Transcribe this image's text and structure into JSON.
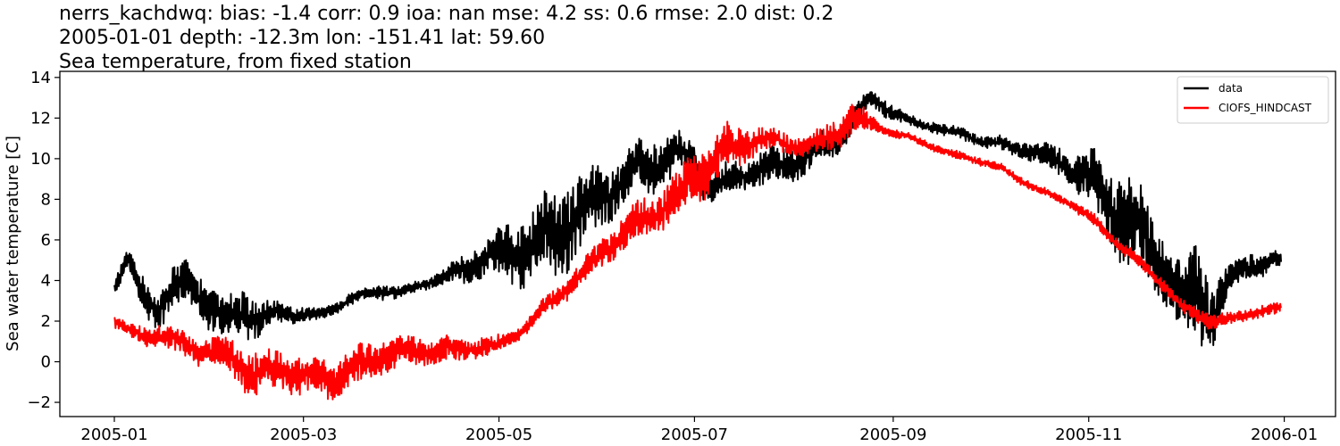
{
  "chart_data": {
    "type": "line",
    "title_lines": [
      "nerrs_kachdwq: bias: -1.4  corr: 0.9  ioa: nan  mse: 4.2  ss: 0.6  rmse: 2.0  dist: 0.2",
      "2005-01-01 depth: -12.3m lon: -151.41 lat: 59.60",
      "Sea temperature, from fixed station"
    ],
    "xlabel": "",
    "ylabel": "Sea water temperature [C]",
    "x_ticks": [
      "2005-01",
      "2005-03",
      "2005-05",
      "2005-07",
      "2005-09",
      "2005-11",
      "2006-01"
    ],
    "xlim": [
      "2004-12-15",
      "2006-01-17"
    ],
    "y_ticks": [
      -2,
      0,
      2,
      4,
      6,
      8,
      10,
      12,
      14
    ],
    "ylim": [
      -2.7,
      14.3
    ],
    "grid": false,
    "legend_placement": "top-right",
    "series": [
      {
        "name": "data",
        "color": "#000000",
        "x": [
          "2005-01-01",
          "2005-01-05",
          "2005-01-10",
          "2005-01-15",
          "2005-01-20",
          "2005-01-25",
          "2005-01-31",
          "2005-02-05",
          "2005-02-10",
          "2005-02-15",
          "2005-02-20",
          "2005-02-28",
          "2005-03-05",
          "2005-03-10",
          "2005-03-15",
          "2005-03-20",
          "2005-03-25",
          "2005-03-31",
          "2005-04-05",
          "2005-04-10",
          "2005-04-15",
          "2005-04-20",
          "2005-04-25",
          "2005-04-30",
          "2005-05-05",
          "2005-05-10",
          "2005-05-15",
          "2005-05-20",
          "2005-05-25",
          "2005-05-31",
          "2005-06-05",
          "2005-06-10",
          "2005-06-15",
          "2005-06-20",
          "2005-06-25",
          "2005-06-30",
          "2005-07-05",
          "2005-07-10",
          "2005-07-15",
          "2005-07-20",
          "2005-07-25",
          "2005-07-31",
          "2005-08-05",
          "2005-08-10",
          "2005-08-15",
          "2005-08-20",
          "2005-08-25",
          "2005-08-31",
          "2005-09-05",
          "2005-09-10",
          "2005-09-15",
          "2005-09-20",
          "2005-09-25",
          "2005-09-30",
          "2005-10-05",
          "2005-10-10",
          "2005-10-15",
          "2005-10-20",
          "2005-10-25",
          "2005-10-31",
          "2005-11-05",
          "2005-11-10",
          "2005-11-15",
          "2005-11-20",
          "2005-11-25",
          "2005-11-30",
          "2005-12-05",
          "2005-12-10",
          "2005-12-15",
          "2005-12-20",
          "2005-12-25",
          "2005-12-31"
        ],
        "y": [
          3.6,
          5.0,
          3.3,
          2.6,
          3.6,
          4.0,
          2.5,
          2.0,
          2.6,
          2.0,
          2.5,
          2.3,
          2.3,
          2.6,
          3.0,
          3.3,
          3.5,
          3.4,
          3.7,
          4.0,
          4.2,
          4.6,
          4.9,
          5.3,
          5.4,
          5.6,
          6.0,
          6.4,
          7.3,
          7.8,
          8.5,
          9.1,
          9.6,
          9.8,
          10.2,
          10.0,
          8.6,
          8.8,
          9.2,
          9.4,
          9.6,
          9.7,
          10.1,
          10.6,
          11.0,
          12.0,
          13.0,
          12.4,
          11.9,
          11.7,
          11.5,
          11.3,
          11.1,
          10.8,
          10.7,
          10.5,
          10.3,
          10.0,
          9.7,
          9.0,
          8.3,
          7.5,
          6.6,
          5.6,
          4.4,
          3.0,
          3.4,
          2.2,
          3.9,
          4.8,
          4.8,
          5.0
        ],
        "fluct": [
          0.5,
          0.5,
          1.0,
          0.9,
          1.1,
          1.1,
          1.1,
          1.1,
          1.2,
          0.9,
          0.5,
          0.4,
          0.3,
          0.3,
          0.3,
          0.3,
          0.4,
          0.3,
          0.3,
          0.3,
          0.4,
          0.8,
          0.9,
          1.2,
          1.6,
          1.7,
          2.0,
          2.2,
          2.0,
          1.8,
          1.3,
          1.3,
          1.4,
          1.4,
          1.0,
          1.0,
          0.7,
          0.8,
          0.8,
          0.8,
          0.9,
          0.9,
          0.8,
          0.8,
          0.9,
          0.6,
          0.5,
          0.4,
          0.3,
          0.3,
          0.3,
          0.3,
          0.3,
          0.3,
          0.4,
          0.4,
          0.5,
          0.6,
          0.8,
          1.2,
          1.8,
          2.4,
          2.4,
          1.8,
          1.8,
          1.8,
          2.6,
          1.5,
          0.8,
          0.7,
          0.6,
          0.4
        ]
      },
      {
        "name": "CIOFS_HINDCAST",
        "color": "#ff0000",
        "x": [
          "2005-01-01",
          "2005-01-05",
          "2005-01-10",
          "2005-01-15",
          "2005-01-20",
          "2005-01-25",
          "2005-01-31",
          "2005-02-05",
          "2005-02-10",
          "2005-02-15",
          "2005-02-20",
          "2005-02-28",
          "2005-03-05",
          "2005-03-10",
          "2005-03-15",
          "2005-03-20",
          "2005-03-25",
          "2005-03-31",
          "2005-04-05",
          "2005-04-10",
          "2005-04-15",
          "2005-04-20",
          "2005-04-25",
          "2005-04-30",
          "2005-05-05",
          "2005-05-10",
          "2005-05-15",
          "2005-05-20",
          "2005-05-25",
          "2005-05-31",
          "2005-06-05",
          "2005-06-10",
          "2005-06-15",
          "2005-06-20",
          "2005-06-25",
          "2005-06-30",
          "2005-07-05",
          "2005-07-10",
          "2005-07-15",
          "2005-07-20",
          "2005-07-25",
          "2005-07-31",
          "2005-08-05",
          "2005-08-10",
          "2005-08-15",
          "2005-08-20",
          "2005-08-25",
          "2005-08-31",
          "2005-09-05",
          "2005-09-10",
          "2005-09-15",
          "2005-09-20",
          "2005-09-25",
          "2005-09-30",
          "2005-10-05",
          "2005-10-10",
          "2005-10-15",
          "2005-10-20",
          "2005-10-25",
          "2005-10-31",
          "2005-11-05",
          "2005-11-10",
          "2005-11-15",
          "2005-11-20",
          "2005-11-25",
          "2005-11-30",
          "2005-12-05",
          "2005-12-10",
          "2005-12-15",
          "2005-12-20",
          "2005-12-25",
          "2005-12-31"
        ],
        "y": [
          2.0,
          1.6,
          1.2,
          1.4,
          1.0,
          0.7,
          0.5,
          0.4,
          -0.2,
          -0.6,
          -0.5,
          -0.6,
          -0.9,
          -0.9,
          -0.4,
          -0.1,
          0.3,
          0.5,
          0.5,
          0.5,
          0.6,
          0.6,
          0.8,
          0.7,
          1.2,
          1.8,
          2.6,
          3.3,
          4.0,
          5.0,
          5.8,
          6.5,
          7.1,
          7.5,
          8.0,
          8.8,
          9.5,
          10.4,
          10.6,
          10.9,
          10.9,
          10.7,
          10.6,
          10.9,
          11.4,
          12.0,
          11.7,
          11.3,
          11.1,
          10.8,
          10.5,
          10.2,
          10.0,
          9.8,
          9.5,
          9.0,
          8.6,
          8.2,
          7.9,
          7.3,
          6.6,
          5.8,
          5.2,
          4.4,
          3.7,
          2.7,
          2.3,
          2.0,
          2.1,
          2.3,
          2.5,
          2.6
        ],
        "fluct": [
          0.3,
          0.3,
          0.5,
          0.6,
          0.6,
          0.7,
          0.7,
          0.9,
          1.0,
          1.1,
          1.0,
          1.0,
          0.9,
          1.0,
          1.0,
          0.9,
          0.8,
          0.8,
          0.7,
          0.6,
          0.7,
          0.7,
          0.5,
          0.5,
          0.3,
          0.4,
          0.5,
          0.5,
          0.6,
          0.7,
          0.8,
          0.9,
          1.0,
          1.1,
          1.2,
          1.4,
          1.2,
          1.2,
          1.0,
          0.7,
          0.6,
          0.5,
          0.5,
          0.6,
          0.8,
          0.8,
          0.4,
          0.2,
          0.2,
          0.2,
          0.2,
          0.2,
          0.2,
          0.2,
          0.2,
          0.2,
          0.2,
          0.2,
          0.2,
          0.3,
          0.3,
          0.3,
          0.3,
          0.3,
          0.3,
          0.3,
          0.4,
          0.4,
          0.3,
          0.3,
          0.3,
          0.3
        ]
      }
    ]
  }
}
